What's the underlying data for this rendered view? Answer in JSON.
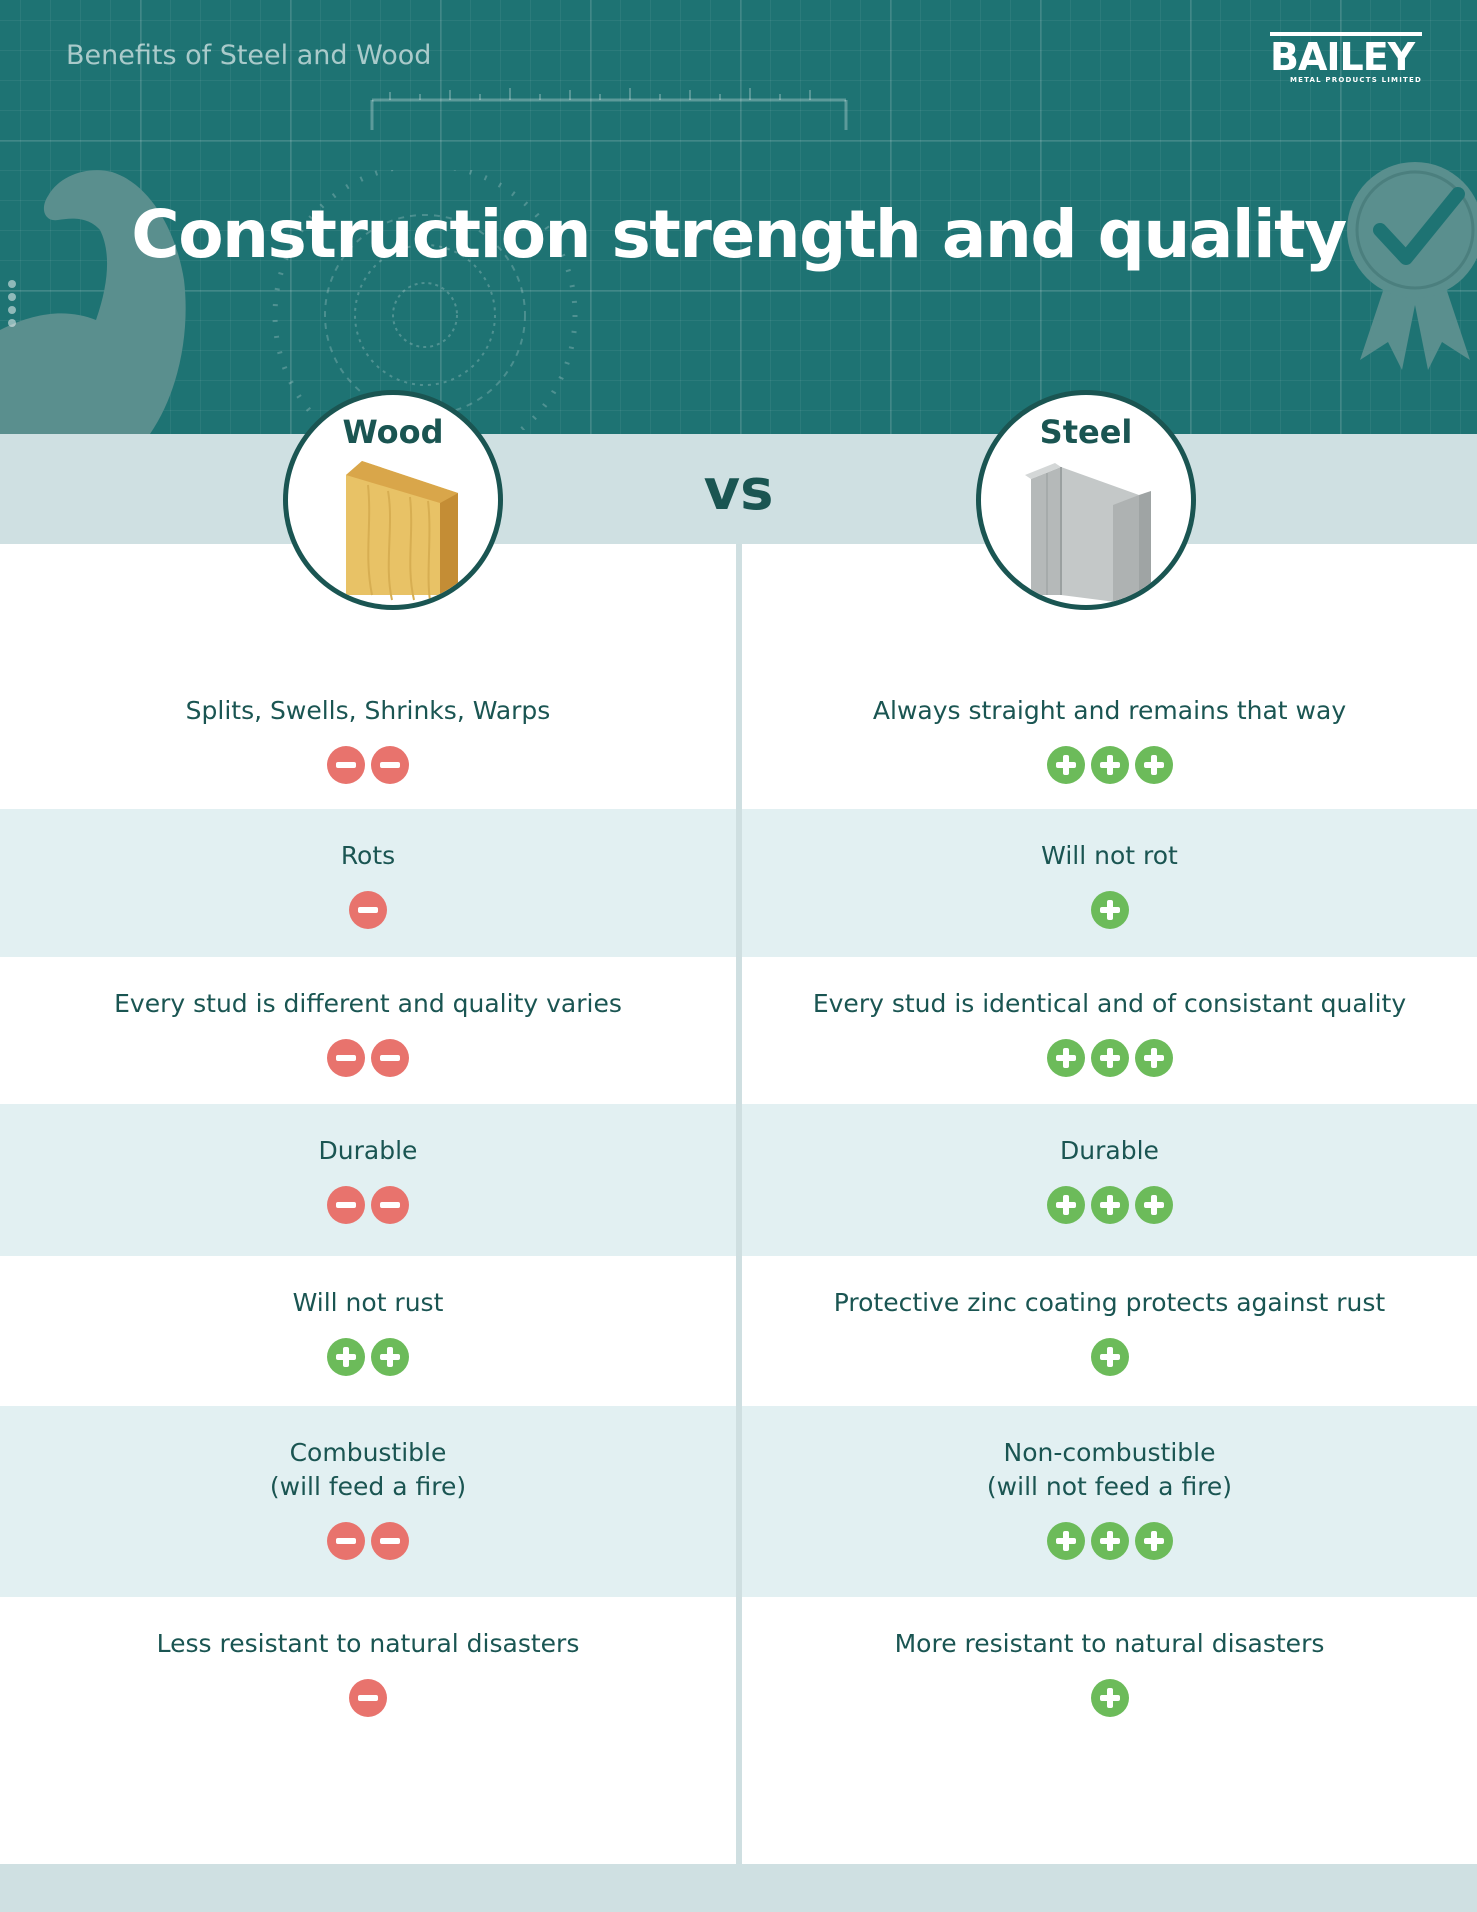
{
  "header": {
    "breadcrumb": "Benefits of Steel and Wood",
    "logo_text": "BAILEY",
    "logo_subtext": "METAL PRODUCTS LIMITED",
    "title": "Construction strength and quality",
    "decor_icons": [
      "flexed-arm-icon",
      "award-ribbon-icon",
      "blueprint-gear-icon",
      "ruler-icon"
    ]
  },
  "comparison": {
    "left_label": "Wood",
    "right_label": "Steel",
    "vs_label": "vs",
    "left_icon": "wood-stud-icon",
    "right_icon": "steel-stud-icon"
  },
  "colors": {
    "header_bg": "#1e7373",
    "text": "#1a5552",
    "band": "#cfe0e2",
    "row_shade": "#e2f0f2",
    "minus": "#e8736d",
    "plus": "#6cbb5a"
  },
  "rows": [
    {
      "left": {
        "text": "Splits, Swells, Shrinks, Warps",
        "rating": -2
      },
      "right": {
        "text": "Always straight and remains that way",
        "rating": 3
      }
    },
    {
      "left": {
        "text": "Rots",
        "rating": -1
      },
      "right": {
        "text": "Will not rot",
        "rating": 1
      }
    },
    {
      "left": {
        "text": "Every stud is different and quality varies",
        "rating": -2
      },
      "right": {
        "text": "Every stud is identical and of consistant quality",
        "rating": 3
      }
    },
    {
      "left": {
        "text": "Durable",
        "rating": -2
      },
      "right": {
        "text": "Durable",
        "rating": 3
      }
    },
    {
      "left": {
        "text": "Will not rust",
        "rating": 2
      },
      "right": {
        "text": "Protective zinc coating protects against rust",
        "rating": 1
      }
    },
    {
      "left": {
        "text": "Combustible\n(will feed a fire)",
        "rating": -2
      },
      "right": {
        "text": "Non-combustible\n(will not feed a fire)",
        "rating": 3
      }
    },
    {
      "left": {
        "text": "Less resistant to natural disasters",
        "rating": -1
      },
      "right": {
        "text": "More resistant to natural disasters",
        "rating": 1
      }
    }
  ]
}
